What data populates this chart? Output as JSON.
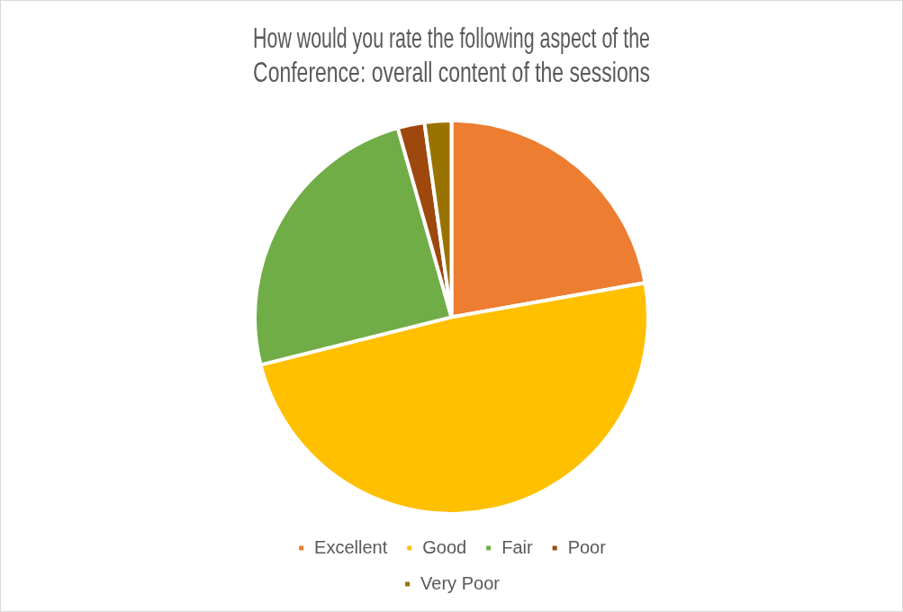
{
  "chart_data": {
    "type": "pie",
    "title": "How would you rate the following aspect of the Conference: overall content of the sessions",
    "categories": [
      "Excellent",
      "Good",
      "Fair",
      "Poor",
      "Very Poor"
    ],
    "values": [
      22.2,
      48.9,
      24.5,
      2.2,
      2.2
    ],
    "colors": [
      "#ed7d31",
      "#ffc000",
      "#70ad47",
      "#9e480e",
      "#997300"
    ],
    "legend": "bottom"
  }
}
